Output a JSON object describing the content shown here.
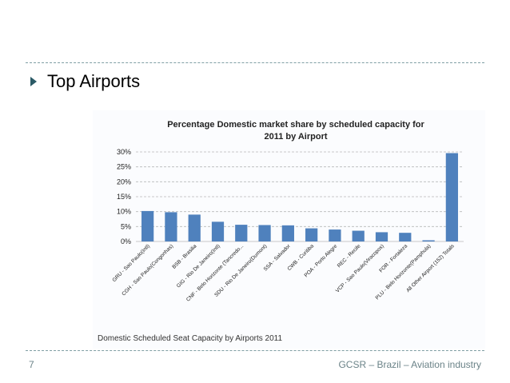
{
  "slide": {
    "title": "Top Airports",
    "number": "7",
    "footer": "GCSR – Brazil – Aviation industry"
  },
  "colors": {
    "bar": "#4f81bd",
    "accent": "#2b5a66",
    "grid": "#b8b8b8",
    "footer": "#6b8388"
  },
  "chart_data": {
    "type": "bar",
    "title_lines": [
      "Percentage Domestic market share by scheduled capacity for",
      "2011 by Airport"
    ],
    "caption": "Domestic Scheduled Seat Capacity by Airports 2011",
    "categories": [
      "GRU - Sao Paulo(Intl)",
      "CGH - Sao Paulo(Congonhas)",
      "BSB - Brasilia",
      "GIG - Rio De Janeiro(Intl)",
      "CNF - Belo Horizonte (Tancredo...",
      "SDU - Rio De Janeiro(Dumont)",
      "SSA - Salvador",
      "CWB - Curitiba",
      "POA - Porto Alegre",
      "REC - Recife",
      "VCP - Sao Paulo(Viracopos)",
      "FOR - Fortaleza",
      "PLU - Belo Horizonte(Pamphula)",
      "All Other Airport (152) Totals"
    ],
    "values": [
      10.2,
      9.8,
      9.0,
      6.6,
      5.6,
      5.5,
      5.4,
      4.4,
      4.0,
      3.6,
      3.1,
      2.9,
      0.4,
      29.6
    ],
    "yticks": [
      "0%",
      "5%",
      "10%",
      "15%",
      "20%",
      "25%",
      "30%"
    ],
    "ylim": [
      0,
      30
    ],
    "unit": "%",
    "grid": true
  }
}
